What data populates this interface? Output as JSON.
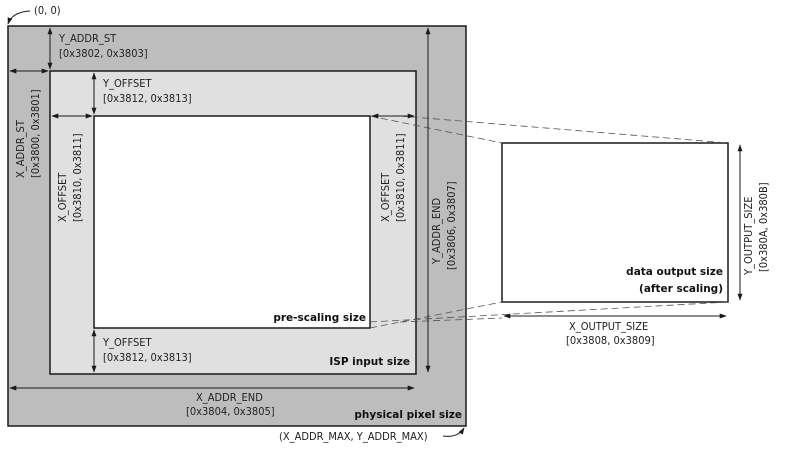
{
  "diagram": {
    "origin_label": "(0, 0)",
    "max_label": "(X_ADDR_MAX, Y_ADDR_MAX)",
    "y_addr_st": {
      "name": "Y_ADDR_ST",
      "regs": "[0x3802, 0x3803]"
    },
    "x_addr_st": {
      "name": "X_ADDR_ST",
      "regs": "[0x3800, 0x3801]"
    },
    "y_offset_top": {
      "name": "Y_OFFSET",
      "regs": "[0x3812, 0x3813]"
    },
    "y_offset_bottom": {
      "name": "Y_OFFSET",
      "regs": "[0x3812, 0x3813]"
    },
    "x_offset_left": {
      "name": "X_OFFSET",
      "regs": "[0x3810, 0x3811]"
    },
    "x_offset_right": {
      "name": "X_OFFSET",
      "regs": "[0x3810, 0x3811]"
    },
    "y_addr_end": {
      "name": "Y_ADDR_END",
      "regs": "[0x3806, 0x3807]"
    },
    "x_addr_end": {
      "name": "X_ADDR_END",
      "regs": "[0x3804, 0x3805]"
    },
    "x_output_size": {
      "name": "X_OUTPUT_SIZE",
      "regs": "[0x3808, 0x3809]"
    },
    "y_output_size": {
      "name": "Y_OUTPUT_SIZE",
      "regs": "[0x380A, 0x380B]"
    },
    "pre_scaling_label": "pre-scaling size",
    "isp_input_label": "ISP input size",
    "physical_label": "physical pixel size",
    "output_label_line1": "data output size",
    "output_label_line2": "(after scaling)",
    "colors": {
      "physical_fill": "#bdbdbd",
      "isp_fill": "#e0e0e0",
      "line": "#1a1a1a",
      "dash": "#555555"
    }
  }
}
